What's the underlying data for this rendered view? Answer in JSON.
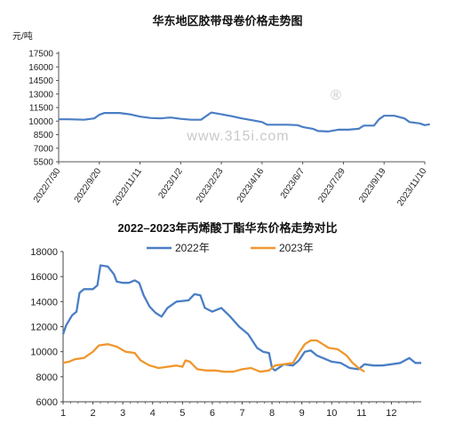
{
  "chart_data": [
    {
      "type": "line",
      "title": "华东地区胶带母卷价格走势图",
      "unit_label": "元/吨",
      "watermark": "www.315i.com",
      "watermark_mark": "®",
      "line_color": "#4a7ec4",
      "y_ticks": [
        5500,
        7000,
        8500,
        10000,
        11500,
        13000,
        14500,
        16000,
        17500
      ],
      "ylim": [
        5500,
        17500
      ],
      "x_ticks": [
        "2022/7/30",
        "2022/9/20",
        "2022/11/11",
        "2023/1/2",
        "2023/2/23",
        "2023/4/16",
        "2023/6/7",
        "2023/7/29",
        "2023/9/19",
        "2023/11/10"
      ],
      "series": [
        {
          "points": [
            [
              0,
              10200
            ],
            [
              2,
              10200
            ],
            [
              5,
              10150
            ],
            [
              7,
              10300
            ],
            [
              8,
              10700
            ],
            [
              9,
              10900
            ],
            [
              12,
              10900
            ],
            [
              14,
              10750
            ],
            [
              16,
              10500
            ],
            [
              18,
              10350
            ],
            [
              20,
              10300
            ],
            [
              22,
              10400
            ],
            [
              24,
              10250
            ],
            [
              26,
              10150
            ],
            [
              28,
              10150
            ],
            [
              30,
              10950
            ],
            [
              32,
              10750
            ],
            [
              34,
              10550
            ],
            [
              36,
              10300
            ],
            [
              38,
              10100
            ],
            [
              40,
              9900
            ],
            [
              41,
              9600
            ],
            [
              43,
              9600
            ],
            [
              45,
              9600
            ],
            [
              47,
              9550
            ],
            [
              48,
              9350
            ],
            [
              50,
              9150
            ],
            [
              51,
              8900
            ],
            [
              53,
              8850
            ],
            [
              55,
              9050
            ],
            [
              57,
              9050
            ],
            [
              59,
              9150
            ],
            [
              60,
              9500
            ],
            [
              62,
              9500
            ],
            [
              63,
              10200
            ],
            [
              64,
              10600
            ],
            [
              66,
              10600
            ],
            [
              67,
              10450
            ],
            [
              68,
              10300
            ],
            [
              69,
              9900
            ],
            [
              71,
              9750
            ],
            [
              72,
              9550
            ],
            [
              73,
              9650
            ]
          ]
        }
      ]
    },
    {
      "type": "line",
      "title": "2022–2023年丙烯酸丁酯华东价格走势对比",
      "ylim": [
        6000,
        18000
      ],
      "y_ticks": [
        6000,
        8000,
        10000,
        12000,
        14000,
        16000,
        18000
      ],
      "x_ticks": [
        "1",
        "2",
        "3",
        "4",
        "5",
        "6",
        "7",
        "8",
        "9",
        "10",
        "11",
        "12"
      ],
      "xlim": [
        1,
        13
      ],
      "series": [
        {
          "name": "2022年",
          "color": "#4a7ec4",
          "points": [
            [
              1.0,
              11400
            ],
            [
              1.1,
              12100
            ],
            [
              1.2,
              12500
            ],
            [
              1.3,
              12900
            ],
            [
              1.45,
              13200
            ],
            [
              1.55,
              14700
            ],
            [
              1.7,
              15000
            ],
            [
              2.0,
              15000
            ],
            [
              2.15,
              15300
            ],
            [
              2.25,
              16900
            ],
            [
              2.5,
              16800
            ],
            [
              2.7,
              16200
            ],
            [
              2.8,
              15600
            ],
            [
              3.0,
              15500
            ],
            [
              3.2,
              15500
            ],
            [
              3.4,
              15700
            ],
            [
              3.55,
              15500
            ],
            [
              3.7,
              14500
            ],
            [
              3.9,
              13600
            ],
            [
              4.1,
              13100
            ],
            [
              4.3,
              12800
            ],
            [
              4.5,
              13500
            ],
            [
              4.8,
              14000
            ],
            [
              5.2,
              14100
            ],
            [
              5.4,
              14600
            ],
            [
              5.6,
              14500
            ],
            [
              5.75,
              13500
            ],
            [
              6.0,
              13200
            ],
            [
              6.3,
              13500
            ],
            [
              6.6,
              12800
            ],
            [
              6.9,
              12000
            ],
            [
              7.2,
              11400
            ],
            [
              7.5,
              10300
            ],
            [
              7.7,
              10000
            ],
            [
              7.9,
              9900
            ],
            [
              8.0,
              8700
            ],
            [
              8.1,
              8500
            ],
            [
              8.4,
              9000
            ],
            [
              8.7,
              8900
            ],
            [
              8.9,
              9300
            ],
            [
              9.1,
              10000
            ],
            [
              9.3,
              10100
            ],
            [
              9.5,
              9700
            ],
            [
              9.8,
              9400
            ],
            [
              10.0,
              9200
            ],
            [
              10.3,
              9100
            ],
            [
              10.6,
              8700
            ],
            [
              10.9,
              8600
            ],
            [
              11.1,
              9000
            ],
            [
              11.4,
              8900
            ],
            [
              11.7,
              8900
            ],
            [
              12.0,
              9000
            ],
            [
              12.3,
              9100
            ],
            [
              12.6,
              9500
            ],
            [
              12.8,
              9100
            ],
            [
              13.0,
              9100
            ]
          ]
        },
        {
          "name": "2023年",
          "color": "#f0972e",
          "points": [
            [
              1.0,
              9100
            ],
            [
              1.2,
              9200
            ],
            [
              1.4,
              9400
            ],
            [
              1.7,
              9500
            ],
            [
              2.0,
              10000
            ],
            [
              2.2,
              10500
            ],
            [
              2.5,
              10600
            ],
            [
              2.8,
              10400
            ],
            [
              3.1,
              10000
            ],
            [
              3.4,
              9900
            ],
            [
              3.6,
              9300
            ],
            [
              3.9,
              8900
            ],
            [
              4.2,
              8700
            ],
            [
              4.5,
              8800
            ],
            [
              4.8,
              8900
            ],
            [
              5.0,
              8800
            ],
            [
              5.1,
              9300
            ],
            [
              5.25,
              9200
            ],
            [
              5.5,
              8600
            ],
            [
              5.8,
              8500
            ],
            [
              6.1,
              8500
            ],
            [
              6.4,
              8400
            ],
            [
              6.7,
              8400
            ],
            [
              7.0,
              8600
            ],
            [
              7.3,
              8700
            ],
            [
              7.6,
              8400
            ],
            [
              7.9,
              8500
            ],
            [
              8.1,
              8900
            ],
            [
              8.4,
              9000
            ],
            [
              8.7,
              9100
            ],
            [
              8.9,
              9900
            ],
            [
              9.1,
              10600
            ],
            [
              9.3,
              10900
            ],
            [
              9.5,
              10900
            ],
            [
              9.7,
              10600
            ],
            [
              9.9,
              10300
            ],
            [
              10.2,
              10200
            ],
            [
              10.5,
              9700
            ],
            [
              10.7,
              9100
            ],
            [
              10.9,
              8700
            ],
            [
              11.1,
              8400
            ]
          ]
        }
      ]
    }
  ]
}
